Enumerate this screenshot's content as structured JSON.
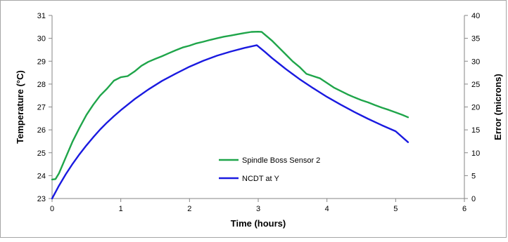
{
  "chart_data": {
    "type": "line",
    "title": "",
    "xlabel": "Time (hours)",
    "ylabel": "Temperature (°C)",
    "y2label": "Error (microns)",
    "xlim": [
      0,
      6
    ],
    "ylim": [
      23,
      31
    ],
    "y2lim": [
      0,
      40
    ],
    "x_ticks": [
      "0",
      "1",
      "2",
      "3",
      "4",
      "5",
      "6"
    ],
    "y_ticks": [
      "23",
      "24",
      "25",
      "26",
      "27",
      "28",
      "29",
      "30",
      "31"
    ],
    "y2_ticks": [
      "0",
      "5",
      "10",
      "15",
      "20",
      "25",
      "30",
      "35",
      "40"
    ],
    "grid": false,
    "legend_position": "center",
    "series": [
      {
        "name": "Spindle Boss Sensor 2",
        "axis": "left",
        "color": "#1fa54a",
        "x": [
          0,
          0.05,
          0.1,
          0.2,
          0.3,
          0.4,
          0.5,
          0.6,
          0.7,
          0.8,
          0.9,
          1.0,
          1.1,
          1.2,
          1.3,
          1.4,
          1.5,
          1.6,
          1.7,
          1.8,
          1.9,
          2.0,
          2.1,
          2.2,
          2.3,
          2.4,
          2.5,
          2.6,
          2.7,
          2.8,
          2.9,
          3.0,
          3.05,
          3.1,
          3.2,
          3.3,
          3.4,
          3.5,
          3.6,
          3.7,
          3.8,
          3.9,
          4.0,
          4.1,
          4.2,
          4.3,
          4.4,
          4.5,
          4.6,
          4.7,
          4.8,
          4.9,
          5.0,
          5.1,
          5.18
        ],
        "values": [
          23.83,
          23.85,
          24.1,
          24.8,
          25.5,
          26.1,
          26.65,
          27.1,
          27.5,
          27.8,
          28.15,
          28.3,
          28.35,
          28.55,
          28.8,
          28.97,
          29.1,
          29.22,
          29.35,
          29.48,
          29.6,
          29.68,
          29.78,
          29.85,
          29.93,
          30.0,
          30.07,
          30.12,
          30.18,
          30.23,
          30.28,
          30.29,
          30.28,
          30.15,
          29.9,
          29.6,
          29.3,
          29.0,
          28.75,
          28.45,
          28.35,
          28.25,
          28.05,
          27.85,
          27.7,
          27.55,
          27.42,
          27.3,
          27.2,
          27.08,
          26.97,
          26.87,
          26.76,
          26.65,
          26.55
        ]
      },
      {
        "name": "NCDT at Y",
        "axis": "right",
        "color": "#1a1ae0",
        "x": [
          0,
          0.05,
          0.1,
          0.2,
          0.3,
          0.4,
          0.5,
          0.6,
          0.7,
          0.8,
          0.9,
          1.0,
          1.2,
          1.4,
          1.6,
          1.8,
          2.0,
          2.2,
          2.4,
          2.6,
          2.8,
          2.98,
          3.1,
          3.2,
          3.3,
          3.4,
          3.5,
          3.6,
          3.8,
          4.0,
          4.2,
          4.4,
          4.6,
          4.8,
          5.0,
          5.18
        ],
        "values": [
          0,
          1.4,
          2.8,
          5.3,
          7.6,
          9.7,
          11.6,
          13.4,
          15.1,
          16.6,
          18.0,
          19.3,
          21.7,
          23.8,
          25.7,
          27.3,
          28.8,
          30.1,
          31.2,
          32.1,
          32.9,
          33.5,
          32.0,
          30.7,
          29.5,
          28.3,
          27.2,
          26.1,
          24.1,
          22.2,
          20.5,
          18.9,
          17.4,
          16.0,
          14.7,
          12.3
        ]
      }
    ]
  }
}
